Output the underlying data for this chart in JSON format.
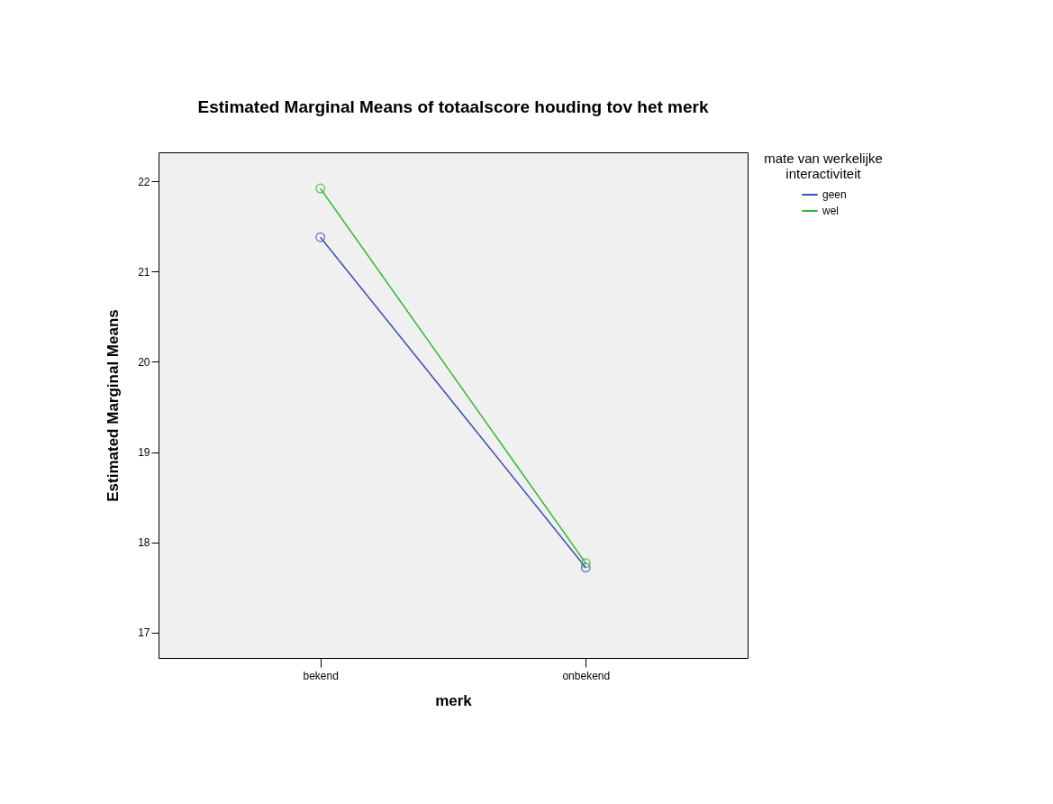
{
  "chart_data": {
    "type": "line",
    "title": "Estimated Marginal Means of totaalscore houding tov het merk",
    "xlabel": "merk",
    "ylabel": "Estimated Marginal Means",
    "legend_title": "mate van werkelijke interactiviteit",
    "categories": [
      "bekend",
      "onbekend"
    ],
    "series": [
      {
        "name": "geen",
        "color": "#3f4fb0",
        "values": [
          21.38,
          17.72
        ]
      },
      {
        "name": "wel",
        "color": "#2db82d",
        "values": [
          21.92,
          17.77
        ]
      }
    ],
    "ylim": [
      16.72,
      22.32
    ],
    "yticks": [
      17,
      18,
      19,
      20,
      21,
      22
    ],
    "grid": false,
    "legend": "top right",
    "marker": "circle",
    "line_style": "solid"
  }
}
